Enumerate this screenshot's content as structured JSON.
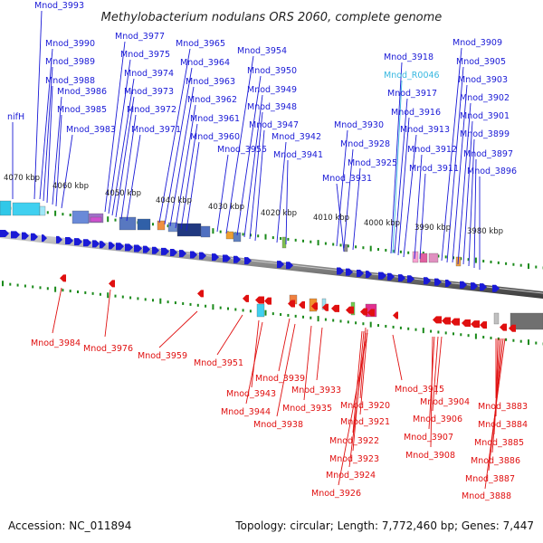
{
  "title": "Methylobacterium nodulans ORS 2060, complete genome",
  "footer": {
    "accession": "Accession: NC_011894",
    "summary": "Topology: circular; Length: 7,772,460 bp; Genes: 7,447"
  },
  "colors": {
    "forward": "#1a1ad6",
    "reverse": "#e01010",
    "rna": "#38b8e0",
    "tick": "#1a8a1a",
    "backbone": "#8c8c8c"
  },
  "kbp_labels": [
    "4070 kbp",
    "4060 kbp",
    "4050 kbp",
    "4040 kbp",
    "4030 kbp",
    "4020 kbp",
    "4010 kbp",
    "4000 kbp",
    "3990 kbp",
    "3980 kbp"
  ],
  "forward_labels": [
    "Mnod_3993",
    "Mnod_3990",
    "Mnod_3989",
    "Mnod_3988",
    "Mnod_3986",
    "Mnod_3985",
    "Mnod_3983",
    "nifH",
    "Mnod_3977",
    "Mnod_3975",
    "Mnod_3974",
    "Mnod_3973",
    "Mnod_3972",
    "Mnod_3971",
    "Mnod_3965",
    "Mnod_3964",
    "Mnod_3963",
    "Mnod_3962",
    "Mnod_3961",
    "Mnod_3960",
    "Mnod_3955",
    "Mnod_3954",
    "Mnod_3950",
    "Mnod_3949",
    "Mnod_3948",
    "Mnod_3947",
    "Mnod_3942",
    "Mnod_3941",
    "Mnod_3930",
    "Mnod_3928",
    "Mnod_3925",
    "Mnod_3931",
    "Mnod_3918",
    "Mnod_3917",
    "Mnod_3916",
    "Mnod_3913",
    "Mnod_3912",
    "Mnod_3911",
    "Mnod_3909",
    "Mnod_3905",
    "Mnod_3903",
    "Mnod_3902",
    "Mnod_3901",
    "Mnod_3899",
    "Mnod_3897",
    "Mnod_3896"
  ],
  "rna_labels": [
    "Mnod_R0046"
  ],
  "reverse_labels": [
    "Mnod_3984",
    "Mnod_3976",
    "Mnod_3959",
    "Mnod_3951",
    "Mnod_3939",
    "Mnod_3943",
    "Mnod_3944",
    "Mnod_3938",
    "Mnod_3935",
    "Mnod_3933",
    "Mnod_3920",
    "Mnod_3921",
    "Mnod_3922",
    "Mnod_3923",
    "Mnod_3924",
    "Mnod_3926",
    "Mnod_3915",
    "Mnod_3904",
    "Mnod_3906",
    "Mnod_3907",
    "Mnod_3908",
    "Mnod_3883",
    "Mnod_3884",
    "Mnod_3885",
    "Mnod_3886",
    "Mnod_3887",
    "Mnod_3888"
  ]
}
